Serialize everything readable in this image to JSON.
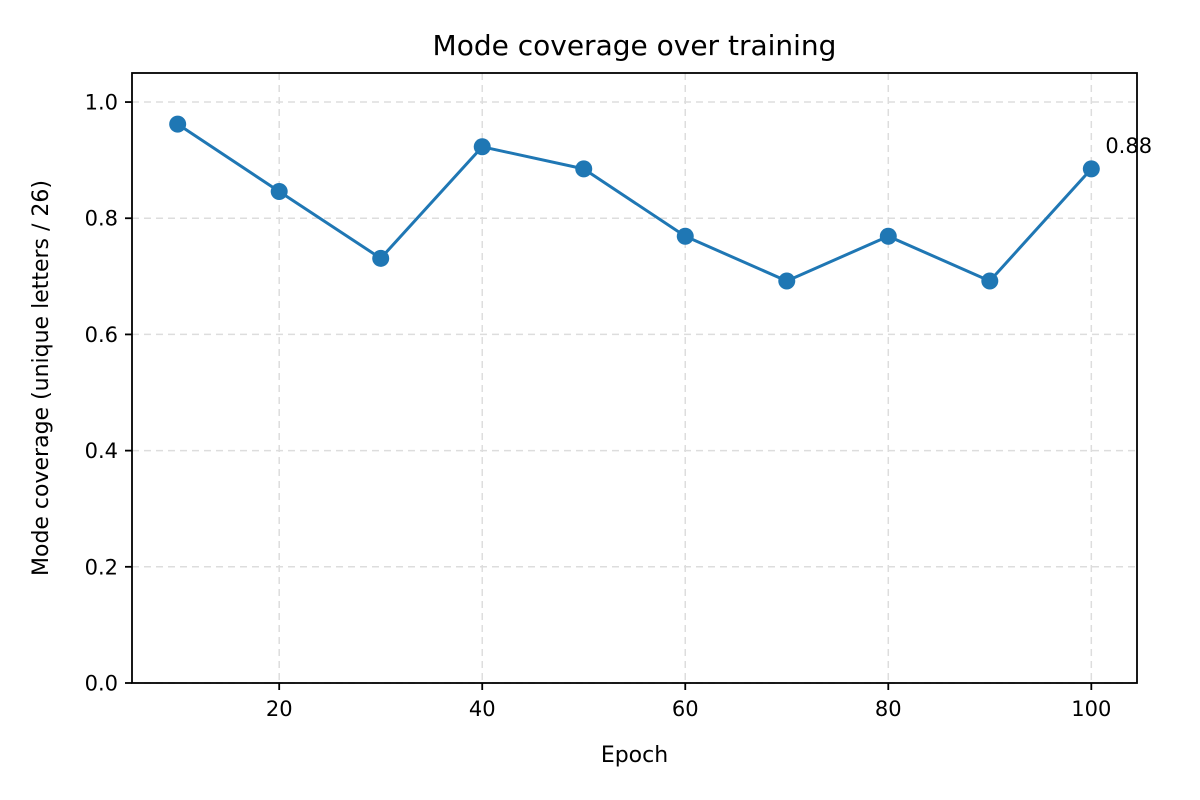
{
  "chart_data": {
    "type": "line",
    "title": "Mode coverage over training",
    "xlabel": "Epoch",
    "ylabel": "Mode coverage (unique letters / 26)",
    "x": [
      10,
      20,
      30,
      40,
      50,
      60,
      70,
      80,
      90,
      100
    ],
    "series": [
      {
        "values": [
          0.962,
          0.846,
          0.731,
          0.923,
          0.885,
          0.769,
          0.692,
          0.769,
          0.692,
          0.885
        ],
        "color": "#1f77b4",
        "marker": "circle"
      }
    ],
    "xlim": [
      5.5,
      104.5
    ],
    "ylim": [
      0.0,
      1.05
    ],
    "xticks": [
      20,
      40,
      60,
      80,
      100
    ],
    "xtick_labels": [
      "20",
      "40",
      "60",
      "80",
      "100"
    ],
    "yticks": [
      0.0,
      0.2,
      0.4,
      0.6,
      0.8,
      1.0
    ],
    "ytick_labels": [
      "0.0",
      "0.2",
      "0.4",
      "0.6",
      "0.8",
      "1.0"
    ],
    "grid": true,
    "annotations": [
      {
        "x": 100,
        "y": 0.885,
        "text": "0.88"
      }
    ]
  }
}
